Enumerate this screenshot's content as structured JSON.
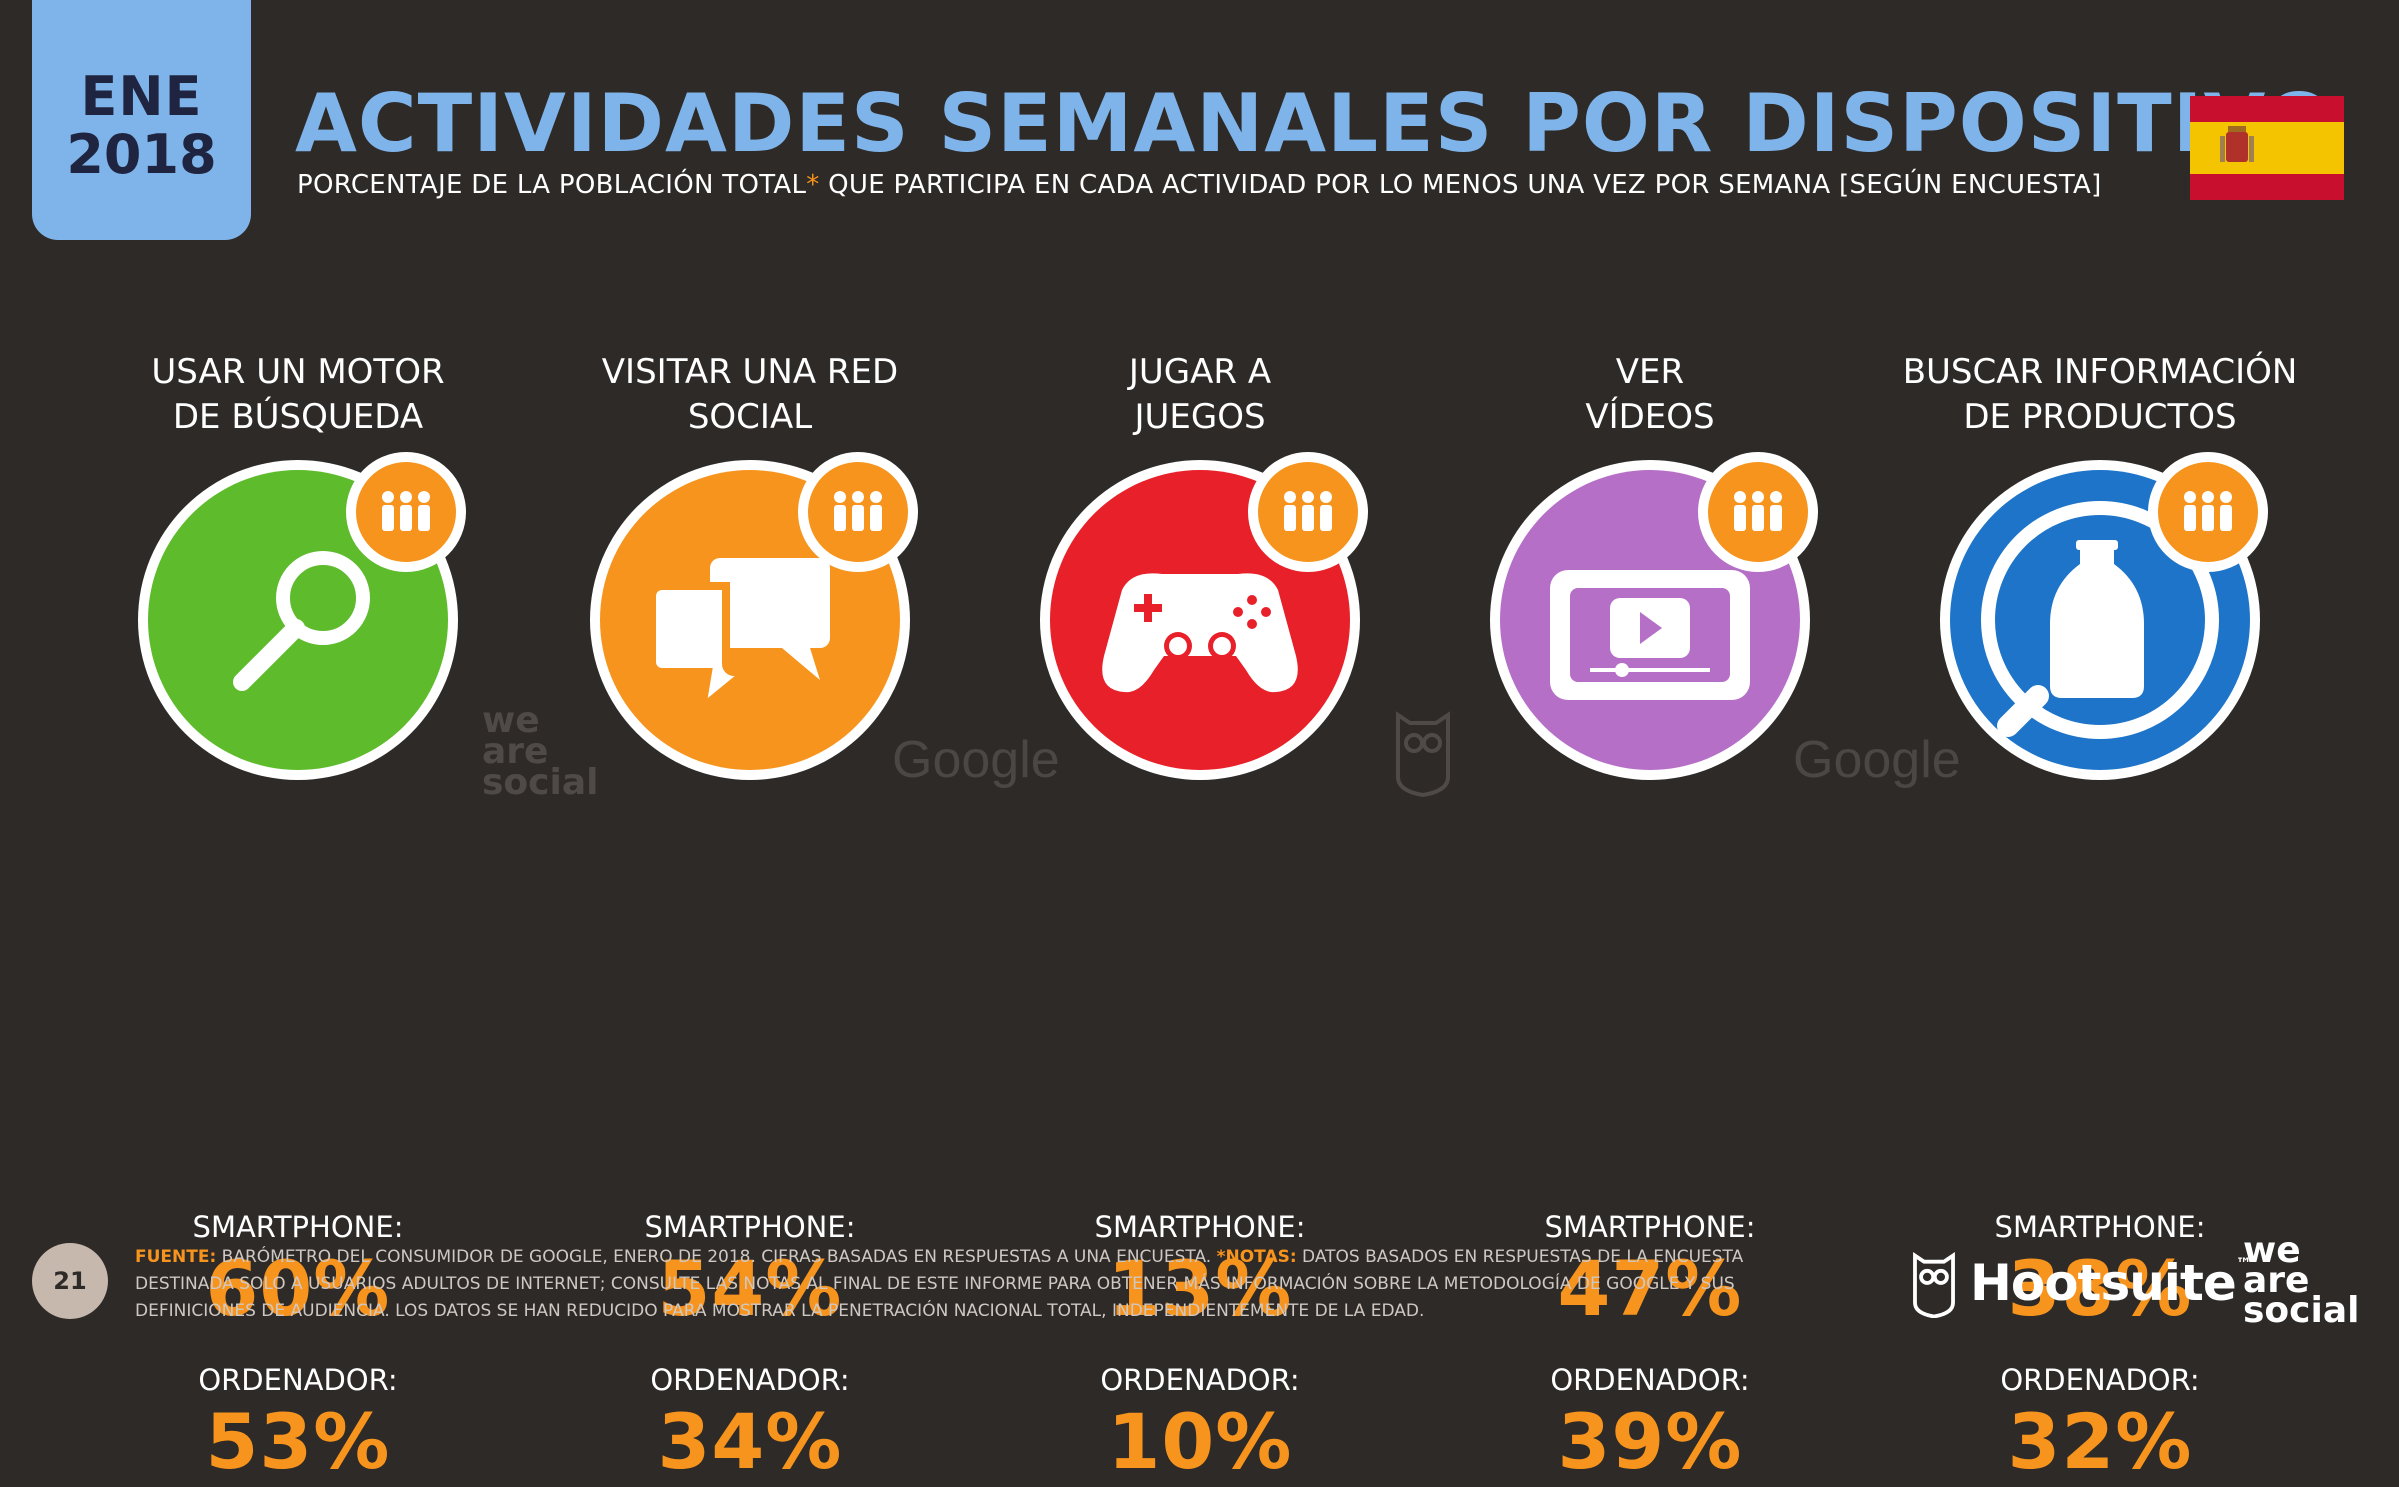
{
  "badge": {
    "month": "ENE",
    "year": "2018"
  },
  "title": "ACTIVIDADES SEMANALES POR DISPOSITIVO",
  "subtitle": {
    "before": "PORCENTAJE DE LA POBLACIÓN TOTAL",
    "asterisk": "*",
    "after": " QUE PARTICIPA EN CADA ACTIVIDAD POR LO MENOS UNA VEZ POR SEMANA [SEGÚN ENCUESTA]"
  },
  "colors": {
    "accent": "#7fb4ea",
    "value": "#f7941d",
    "background": "#2e2a28"
  },
  "activities": [
    {
      "label_line1": "USAR UN MOTOR",
      "label_line2": "DE BÚSQUEDA",
      "icon": "magnifier-icon",
      "color": "#5dbb2c",
      "smartphone_label": "SMARTPHONE:",
      "smartphone": "60%",
      "computer_label": "ORDENADOR:",
      "computer": "53%"
    },
    {
      "label_line1": "VISITAR UNA RED",
      "label_line2": "SOCIAL",
      "icon": "chat-bubbles-icon",
      "color": "#f7941d",
      "smartphone_label": "SMARTPHONE:",
      "smartphone": "54%",
      "computer_label": "ORDENADOR:",
      "computer": "34%"
    },
    {
      "label_line1": "JUGAR A",
      "label_line2": "JUEGOS",
      "icon": "gamepad-icon",
      "color": "#e8202a",
      "smartphone_label": "SMARTPHONE:",
      "smartphone": "13%",
      "computer_label": "ORDENADOR:",
      "computer": "10%"
    },
    {
      "label_line1": "VER",
      "label_line2": "VÍDEOS",
      "icon": "video-player-icon",
      "color": "#b56fc7",
      "smartphone_label": "SMARTPHONE:",
      "smartphone": "47%",
      "computer_label": "ORDENADOR:",
      "computer": "39%"
    },
    {
      "label_line1": "BUSCAR INFORMACIÓN",
      "label_line2": "DE PRODUCTOS",
      "icon": "product-search-icon",
      "color": "#1d74c9",
      "smartphone_label": "SMARTPHONE:",
      "smartphone": "38%",
      "computer_label": "ORDENADOR:",
      "computer": "32%"
    }
  ],
  "watermarks": {
    "we": "we",
    "are": "are",
    "social": "social",
    "google": "Google"
  },
  "page_number": "21",
  "footer": {
    "source_label": "FUENTE:",
    "source_text": " BARÓMETRO DEL CONSUMIDOR DE GOOGLE, ENERO DE 2018. CIFRAS BASADAS EN RESPUESTAS A UNA ENCUESTA. ",
    "notes_label": "*NOTAS:",
    "notes_text": " DATOS BASADOS EN RESPUESTAS DE LA ENCUESTA DESTINADA SOLO A USUARIOS ADULTOS DE INTERNET; CONSULTE LAS NOTAS AL FINAL DE ESTE INFORME PARA OBTENER MÁS INFORMACIÓN SOBRE LA METODOLOGÍA DE GOOGLE Y SUS DEFINICIONES DE AUDIENCIA. LOS DATOS SE HAN REDUCIDO PARA MOSTRAR LA PENETRACIÓN NACIONAL TOTAL, INDEPENDIENTEMENTE DE LA EDAD."
  },
  "logos": {
    "hootsuite": "Hootsuite",
    "tm": "™",
    "we": "we",
    "are": "are",
    "social": "social"
  }
}
